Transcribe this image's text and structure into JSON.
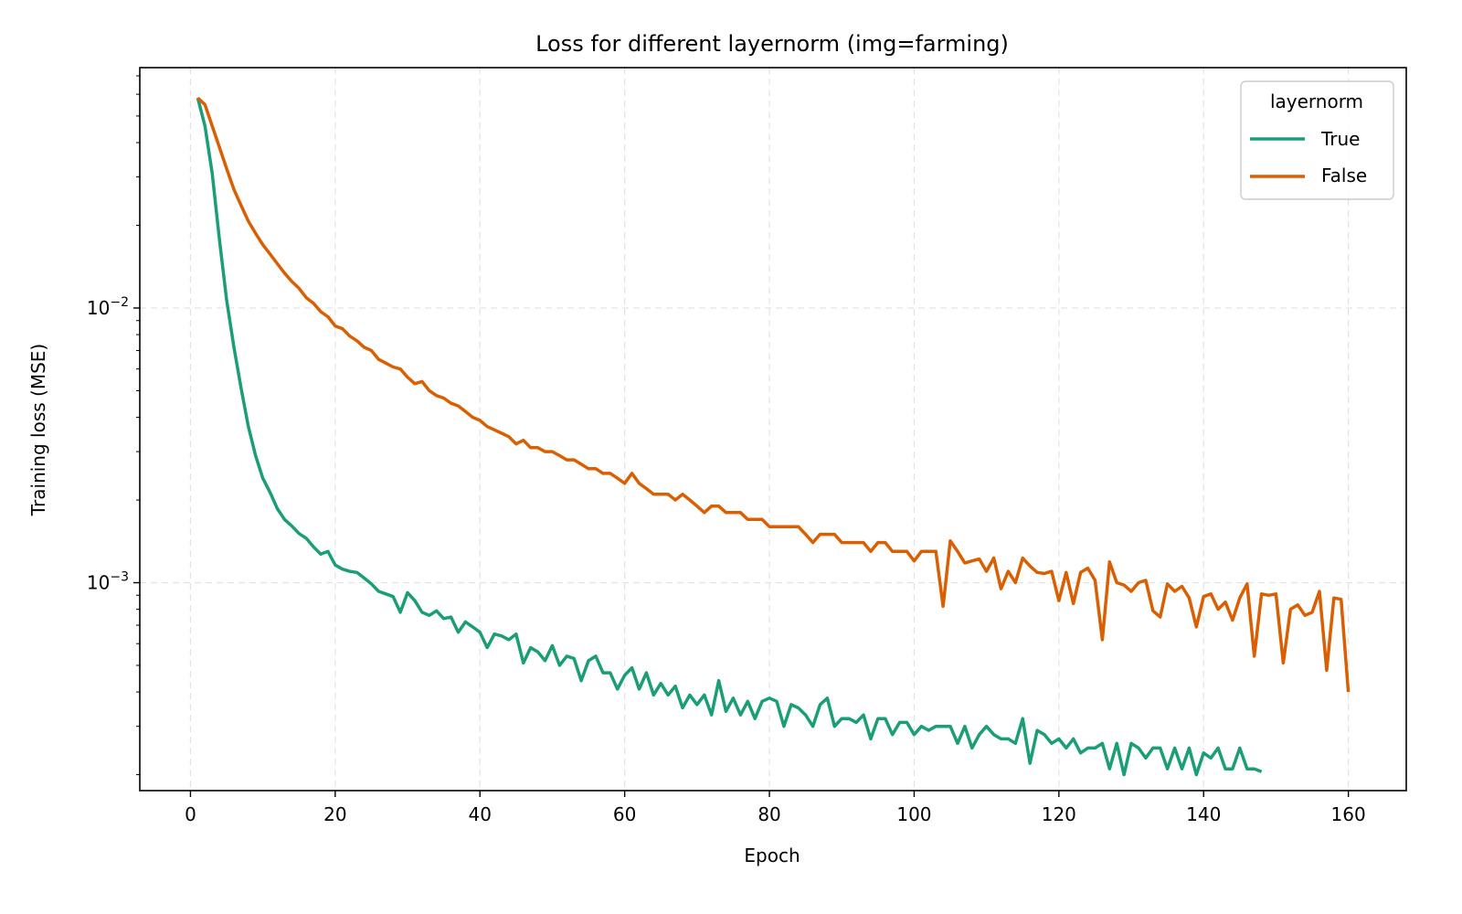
{
  "chart_data": {
    "type": "line",
    "title": "Loss for different layernorm (img=farming)",
    "xlabel": "Epoch",
    "ylabel": "Training loss (MSE)",
    "xlim": [
      -7,
      168
    ],
    "ylim": [
      0.000175,
      0.075
    ],
    "yscale": "log",
    "grid": true,
    "x_ticks": [
      0,
      20,
      40,
      60,
      80,
      100,
      120,
      140,
      160
    ],
    "x_tick_labels": [
      "0",
      "20",
      "40",
      "60",
      "80",
      "100",
      "120",
      "140",
      "160"
    ],
    "y_ticks": [
      0.01,
      0.001
    ],
    "y_tick_labels": [
      {
        "base": "10",
        "exp": "−2"
      },
      {
        "base": "10",
        "exp": "−3"
      }
    ],
    "legend": {
      "title": "layernorm",
      "placement": "top-right",
      "entries": [
        "True",
        "False"
      ]
    },
    "series": [
      {
        "name": "True",
        "color": "#1b9e77",
        "x_start": 1,
        "values": [
          0.0582,
          0.046,
          0.031,
          0.0178,
          0.0107,
          0.0072,
          0.0051,
          0.0037,
          0.0029,
          0.0024,
          0.00213,
          0.00186,
          0.0017,
          0.00161,
          0.00151,
          0.00145,
          0.00135,
          0.00127,
          0.0013,
          0.00116,
          0.00112,
          0.0011,
          0.00109,
          0.00104,
          0.00099,
          0.00093,
          0.00091,
          0.00089,
          0.00078,
          0.00092,
          0.00086,
          0.00078,
          0.00076,
          0.00079,
          0.00074,
          0.00075,
          0.00066,
          0.00072,
          0.00069,
          0.00066,
          0.00058,
          0.00065,
          0.00064,
          0.00062,
          0.00065,
          0.00051,
          0.00058,
          0.00056,
          0.00052,
          0.00059,
          0.0005,
          0.00054,
          0.00053,
          0.00044,
          0.00052,
          0.00054,
          0.00047,
          0.00047,
          0.00041,
          0.00046,
          0.00049,
          0.00041,
          0.00047,
          0.00039,
          0.00043,
          0.00039,
          0.00042,
          0.00035,
          0.00039,
          0.00036,
          0.00039,
          0.00033,
          0.00044,
          0.00034,
          0.00038,
          0.00033,
          0.00037,
          0.00032,
          0.00037,
          0.00038,
          0.00037,
          0.0003,
          0.00036,
          0.00035,
          0.00033,
          0.0003,
          0.00036,
          0.00038,
          0.0003,
          0.00032,
          0.00032,
          0.00031,
          0.00033,
          0.00027,
          0.00032,
          0.00032,
          0.00028,
          0.00031,
          0.00031,
          0.00028,
          0.0003,
          0.00029,
          0.0003,
          0.0003,
          0.0003,
          0.00026,
          0.0003,
          0.00025,
          0.00028,
          0.0003,
          0.00028,
          0.00027,
          0.00027,
          0.00026,
          0.00032,
          0.00022,
          0.00029,
          0.00028,
          0.00026,
          0.00027,
          0.00025,
          0.00027,
          0.00024,
          0.00025,
          0.00025,
          0.00026,
          0.00021,
          0.00026,
          0.0002,
          0.00026,
          0.00025,
          0.00023,
          0.00025,
          0.00025,
          0.00021,
          0.00025,
          0.00021,
          0.00025,
          0.0002,
          0.00024,
          0.00023,
          0.00025,
          0.00021,
          0.00021,
          0.00025,
          0.00021,
          0.00021,
          0.000205
        ]
      },
      {
        "name": "False",
        "color": "#d95f02",
        "x_start": 1,
        "values": [
          0.0582,
          0.055,
          0.046,
          0.0385,
          0.0322,
          0.027,
          0.0236,
          0.0207,
          0.0187,
          0.017,
          0.0157,
          0.0145,
          0.0134,
          0.0125,
          0.0118,
          0.0109,
          0.0104,
          0.0097,
          0.0093,
          0.0086,
          0.0084,
          0.0079,
          0.0076,
          0.0072,
          0.007,
          0.0065,
          0.0063,
          0.0061,
          0.006,
          0.0056,
          0.0053,
          0.0054,
          0.005,
          0.0048,
          0.0047,
          0.0045,
          0.0044,
          0.0042,
          0.004,
          0.0039,
          0.0037,
          0.0036,
          0.0035,
          0.0034,
          0.0032,
          0.0033,
          0.0031,
          0.0031,
          0.003,
          0.003,
          0.0029,
          0.0028,
          0.0028,
          0.0027,
          0.0026,
          0.0026,
          0.0025,
          0.0025,
          0.0024,
          0.0023,
          0.0025,
          0.0023,
          0.0022,
          0.0021,
          0.0021,
          0.0021,
          0.002,
          0.0021,
          0.002,
          0.0019,
          0.0018,
          0.0019,
          0.0019,
          0.0018,
          0.0018,
          0.0018,
          0.0017,
          0.0017,
          0.0017,
          0.0016,
          0.0016,
          0.0016,
          0.0016,
          0.0016,
          0.0015,
          0.0014,
          0.0015,
          0.0015,
          0.0015,
          0.0014,
          0.0014,
          0.0014,
          0.0014,
          0.0013,
          0.0014,
          0.0014,
          0.0013,
          0.0013,
          0.0013,
          0.0012,
          0.0013,
          0.0013,
          0.0013,
          0.00082,
          0.00142,
          0.0013,
          0.00118,
          0.0012,
          0.00122,
          0.0011,
          0.00123,
          0.00095,
          0.0011,
          0.001,
          0.00123,
          0.00115,
          0.00109,
          0.00108,
          0.0011,
          0.00086,
          0.00109,
          0.00084,
          0.00109,
          0.00113,
          0.00102,
          0.00062,
          0.00119,
          0.001,
          0.00098,
          0.00093,
          0.001,
          0.00102,
          0.00079,
          0.00075,
          0.00099,
          0.00093,
          0.00097,
          0.00088,
          0.00069,
          0.00089,
          0.00091,
          0.0008,
          0.00085,
          0.00073,
          0.00088,
          0.00099,
          0.00054,
          0.00091,
          0.0009,
          0.00091,
          0.00051,
          0.0008,
          0.00083,
          0.00076,
          0.00078,
          0.00093,
          0.00048,
          0.00088,
          0.00087,
          0.0004
        ]
      }
    ]
  }
}
